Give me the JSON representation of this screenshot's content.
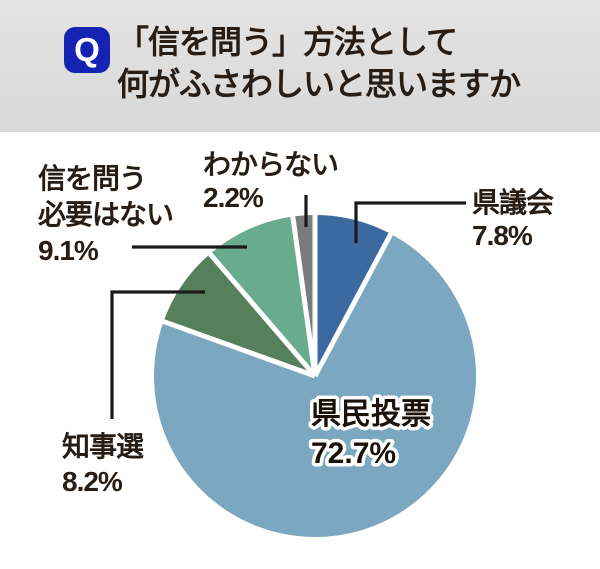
{
  "header": {
    "q_badge": "Q",
    "title_line1": "「信を問う」方法として",
    "title_line2": "何がふさわしいと思いますか"
  },
  "chart_data": {
    "type": "pie",
    "title": "「信を問う」方法として何がふさわしいと思いますか",
    "unit": "%",
    "total": 100,
    "start_angle_deg": 0,
    "direction": "clockwise",
    "legend": "none",
    "labels": "outside-with-leader-lines",
    "slices": [
      {
        "label": "県議会",
        "value": 7.8,
        "pct_label": "7.8%",
        "color": "#3c6aa0"
      },
      {
        "label": "県民投票",
        "value": 72.7,
        "pct_label": "72.7%",
        "color": "#7ba7c1"
      },
      {
        "label": "知事選",
        "value": 8.2,
        "pct_label": "8.2%",
        "color": "#55805b"
      },
      {
        "label": "信を問う必要はない",
        "value": 9.1,
        "pct_label": "9.1%",
        "color": "#69ab8f",
        "label_lines": [
          "信を問う",
          "必要はない"
        ]
      },
      {
        "label": "わからない",
        "value": 2.2,
        "pct_label": "2.2%",
        "color": "#7b7b7b"
      }
    ]
  },
  "colors": {
    "header_bg": "#dcdcdc",
    "q_badge_bg": "#1423b2",
    "q_badge_fg": "#ffffff",
    "text": "#271d15",
    "leader_line": "#1a1a1a",
    "slice_separator": "#ffffff",
    "canvas_bg": "#ffffff"
  }
}
